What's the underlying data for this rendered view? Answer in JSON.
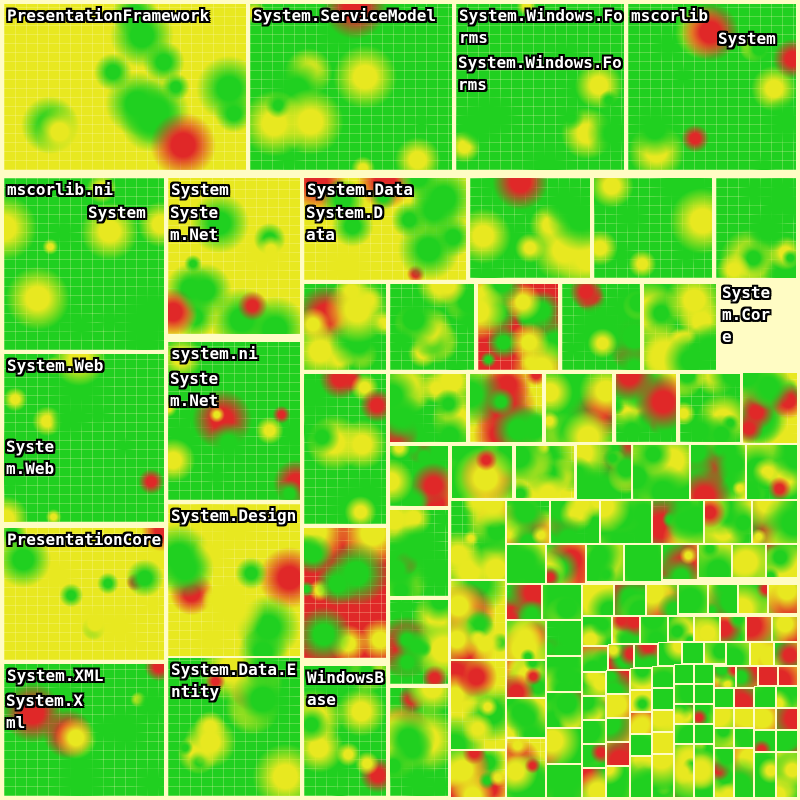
{
  "chart_data": {
    "type": "treemap",
    "title": "",
    "color_scale": {
      "low": "#20d020",
      "mid": "#e8e820",
      "high": "#e02828",
      "background": "#fffcc4"
    },
    "nodes": [
      {
        "id": "n1",
        "label": "PresentationFramework"
      },
      {
        "id": "n2",
        "label": "System.ServiceModel"
      },
      {
        "id": "n3",
        "label": "System.Windows.Forms"
      },
      {
        "id": "n3a",
        "label": "System.Windows.Forms"
      },
      {
        "id": "n4",
        "label": "mscorlib"
      },
      {
        "id": "n4a",
        "label": "System"
      },
      {
        "id": "n5",
        "label": "mscorlib.ni"
      },
      {
        "id": "n5a",
        "label": "System"
      },
      {
        "id": "n6",
        "label": "System"
      },
      {
        "id": "n6a",
        "label": "System.Net"
      },
      {
        "id": "n7",
        "label": "System.Data"
      },
      {
        "id": "n7a",
        "label": "System.Data"
      },
      {
        "id": "n8",
        "label": "System.Core"
      },
      {
        "id": "n9",
        "label": "System.Web"
      },
      {
        "id": "n9a",
        "label": "System.Web"
      },
      {
        "id": "n10",
        "label": "system.ni"
      },
      {
        "id": "n10a",
        "label": "System.Net"
      },
      {
        "id": "n11",
        "label": "PresentationCore"
      },
      {
        "id": "n12",
        "label": "System.Design"
      },
      {
        "id": "n13",
        "label": "System.XML"
      },
      {
        "id": "n13a",
        "label": "System.Xml"
      },
      {
        "id": "n14",
        "label": "System.Data.Entity"
      },
      {
        "id": "n15",
        "label": "WindowsBase"
      }
    ]
  }
}
